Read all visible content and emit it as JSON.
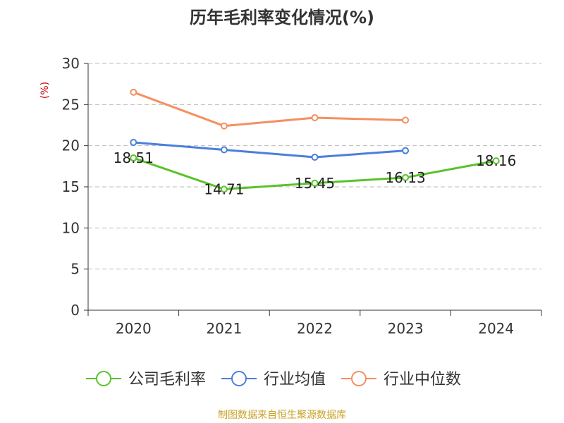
{
  "colors": {
    "company": "#5ac229",
    "industry_avg": "#4a7fdc",
    "industry_median": "#f49060",
    "axis": "#333333",
    "grid": "#bbbbbb",
    "unit_label": "#cc0000",
    "source": "#c9a227"
  },
  "chart_data": {
    "type": "line",
    "title": "历年毛利率变化情况(%)",
    "ylabel": "(%)",
    "xlabel": "",
    "categories": [
      "2020",
      "2021",
      "2022",
      "2023",
      "2024"
    ],
    "ylim": [
      0,
      30
    ],
    "yticks": [
      0,
      5,
      10,
      15,
      20,
      25,
      30
    ],
    "grid": true,
    "legend_position": "bottom",
    "series": [
      {
        "name": "公司毛利率",
        "color_key": "company",
        "values": [
          18.51,
          14.71,
          15.45,
          16.13,
          18.16
        ],
        "labels": [
          "18.51",
          "14.71",
          "15.45",
          "16.13",
          "18.16"
        ]
      },
      {
        "name": "行业均值",
        "color_key": "industry_avg",
        "values": [
          20.4,
          19.5,
          18.6,
          19.4,
          null
        ]
      },
      {
        "name": "行业中位数",
        "color_key": "industry_median",
        "values": [
          26.5,
          22.4,
          23.4,
          23.1,
          null
        ]
      }
    ]
  },
  "source_text": "制图数据来自恒生聚源数据库"
}
